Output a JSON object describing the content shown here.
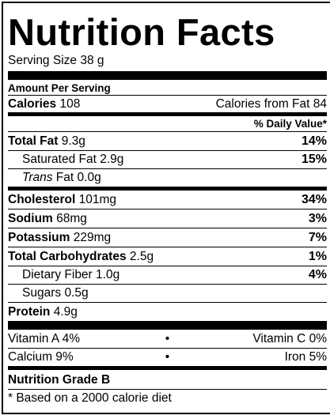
{
  "title": "Nutrition Facts",
  "serving_size": "Serving Size 38 g",
  "amount_per_serving": "Amount Per Serving",
  "calories": {
    "label": "Calories",
    "value": "108",
    "from_fat": "Calories from Fat 84"
  },
  "daily_value_header": "% Daily Value*",
  "nutrients": {
    "total_fat": {
      "label": "Total Fat",
      "amount": "9.3g",
      "pct": "14%"
    },
    "saturated_fat": {
      "label": "Saturated Fat",
      "amount": "2.9g",
      "pct": "15%"
    },
    "trans_fat": {
      "label_italic": "Trans",
      "label_rest": "Fat",
      "amount": "0.0g"
    },
    "cholesterol": {
      "label": "Cholesterol",
      "amount": "101mg",
      "pct": "34%"
    },
    "sodium": {
      "label": "Sodium",
      "amount": "68mg",
      "pct": "3%"
    },
    "potassium": {
      "label": "Potassium",
      "amount": "229mg",
      "pct": "7%"
    },
    "total_carbohydrates": {
      "label": "Total Carbohydrates",
      "amount": "2.5g",
      "pct": "1%"
    },
    "dietary_fiber": {
      "label": "Dietary Fiber",
      "amount": "1.0g",
      "pct": "4%"
    },
    "sugars": {
      "label": "Sugars",
      "amount": "0.5g"
    },
    "protein": {
      "label": "Protein",
      "amount": "4.9g"
    }
  },
  "vitamins": {
    "vitamin_a": "Vitamin A 4%",
    "vitamin_c": "Vitamin C 0%",
    "calcium": "Calcium 9%",
    "iron": "Iron 5%",
    "separator": "•"
  },
  "grade": "Nutrition Grade B",
  "footnote": "* Based on a 2000 calorie diet"
}
